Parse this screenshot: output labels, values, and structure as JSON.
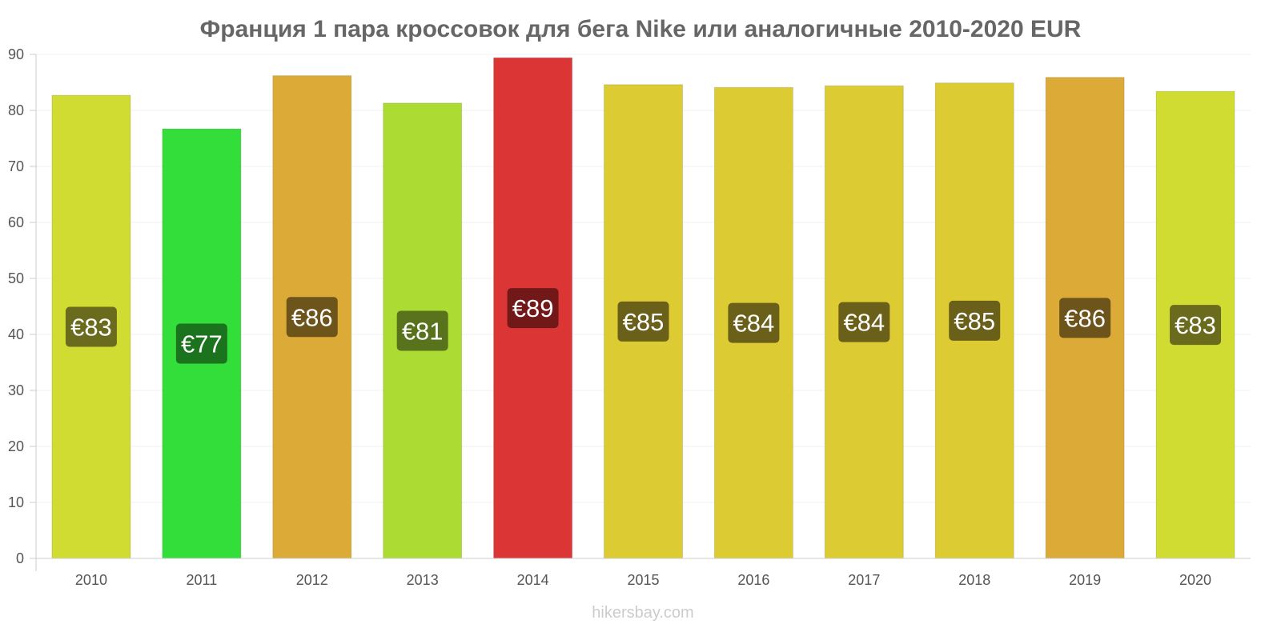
{
  "chart_data": {
    "type": "bar",
    "title": "Франция 1 пара кроссовок для бега Nike или аналогичные 2010-2020 EUR",
    "xlabel": "",
    "ylabel": "",
    "ylim": [
      0,
      90
    ],
    "yticks": [
      0,
      10,
      20,
      30,
      40,
      50,
      60,
      70,
      80,
      90
    ],
    "categories": [
      "2010",
      "2011",
      "2012",
      "2013",
      "2014",
      "2015",
      "2016",
      "2017",
      "2018",
      "2019",
      "2020"
    ],
    "values": [
      82.7,
      76.7,
      86.2,
      81.3,
      89.4,
      84.6,
      84.1,
      84.4,
      84.9,
      85.9,
      83.4
    ],
    "labels": [
      "€83",
      "€77",
      "€86",
      "€81",
      "€89",
      "€85",
      "€84",
      "€84",
      "€85",
      "€86",
      "€83"
    ],
    "bar_colors": [
      "#d1dc33",
      "#33de3a",
      "#dcaa36",
      "#acdc33",
      "#dc3536",
      "#dccb33",
      "#dccb33",
      "#dccb33",
      "#dccb33",
      "#dcaa36",
      "#d1dc33"
    ],
    "label_colors": [
      "#6b6b1e",
      "#1c731d",
      "#6d541a",
      "#59721c",
      "#731818",
      "#6b601a",
      "#6b601a",
      "#6b601a",
      "#6b601a",
      "#6d541a",
      "#6b6b1e"
    ],
    "grid": true,
    "legend": "none"
  },
  "watermark": "hikersbay.com"
}
